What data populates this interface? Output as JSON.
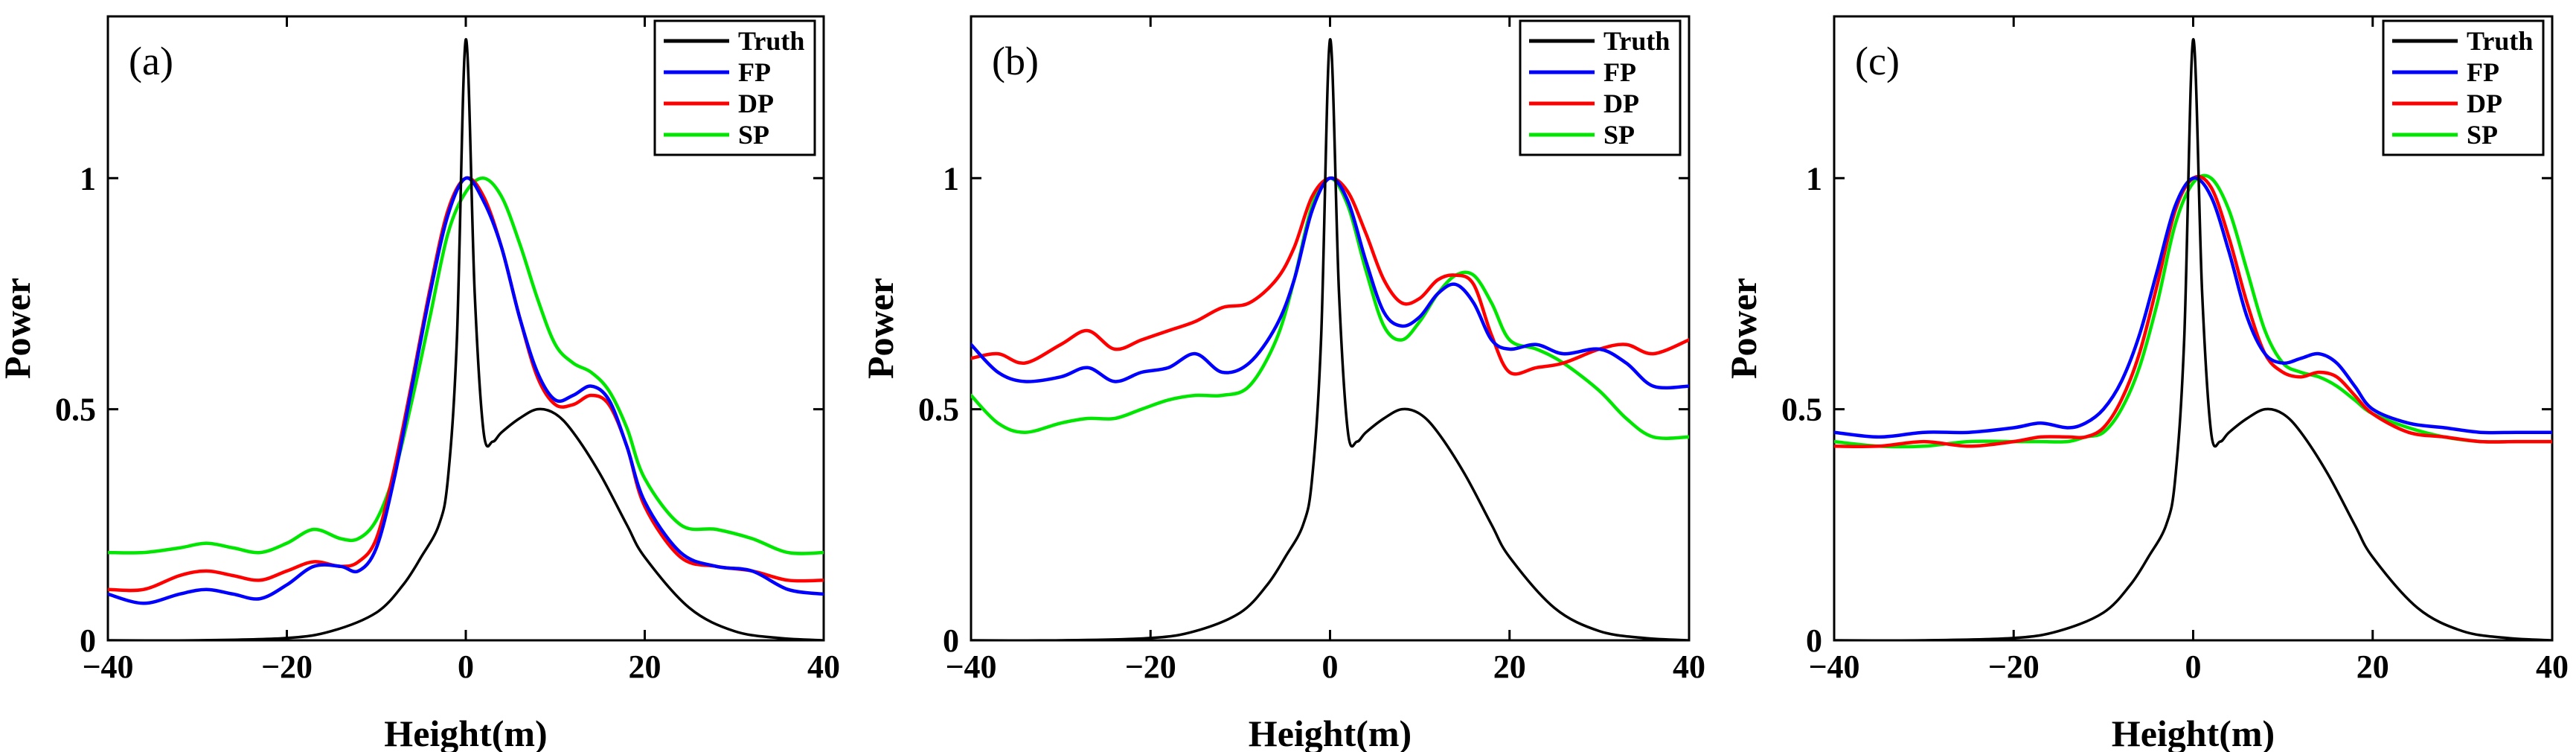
{
  "colors": {
    "Truth": "#000000",
    "FP": "#0000ff",
    "DP": "#ff0000",
    "SP": "#00e600"
  },
  "chart_data": [
    {
      "type": "line",
      "panel_label": "(a)",
      "xlabel": "Height(m)",
      "ylabel": "Power",
      "xlim": [
        -40,
        40
      ],
      "ylim": [
        0,
        1.35
      ],
      "xticks": [
        -40,
        -20,
        0,
        20,
        40
      ],
      "yticks": [
        0,
        0.5,
        1
      ],
      "xtick_labels": [
        "−40",
        "−20",
        "0",
        "20",
        "40"
      ],
      "ytick_labels": [
        "0",
        "0.5",
        "1"
      ],
      "legend": [
        "Truth",
        "FP",
        "DP",
        "SP"
      ],
      "legend_position": "top-right",
      "series": [
        {
          "name": "Truth",
          "x": [
            -40,
            -30,
            -20,
            -15,
            -10,
            -7,
            -5,
            -3,
            -2,
            -1,
            0,
            1,
            2,
            3,
            4,
            6,
            8,
            10,
            12,
            15,
            18,
            20,
            25,
            30,
            35,
            40
          ],
          "y": [
            0,
            0,
            0.005,
            0.02,
            0.06,
            0.12,
            0.18,
            0.25,
            0.35,
            0.65,
            1.3,
            0.75,
            0.45,
            0.43,
            0.45,
            0.48,
            0.5,
            0.49,
            0.45,
            0.36,
            0.25,
            0.18,
            0.07,
            0.02,
            0.005,
            0
          ]
        },
        {
          "name": "FP",
          "x": [
            -40,
            -36,
            -32,
            -29,
            -26,
            -23,
            -20,
            -17,
            -14,
            -12,
            -10,
            -8,
            -6,
            -4,
            -2,
            0,
            2,
            4,
            6,
            8,
            10,
            12,
            14,
            16,
            18,
            20,
            24,
            28,
            32,
            36,
            40
          ],
          "y": [
            0.1,
            0.08,
            0.1,
            0.11,
            0.1,
            0.09,
            0.12,
            0.16,
            0.16,
            0.15,
            0.2,
            0.35,
            0.55,
            0.75,
            0.92,
            1.0,
            0.95,
            0.85,
            0.7,
            0.58,
            0.52,
            0.53,
            0.55,
            0.52,
            0.42,
            0.3,
            0.19,
            0.16,
            0.15,
            0.11,
            0.1
          ]
        },
        {
          "name": "DP",
          "x": [
            -40,
            -36,
            -32,
            -29,
            -26,
            -23,
            -20,
            -17,
            -14,
            -12,
            -10,
            -8,
            -6,
            -4,
            -2,
            0,
            2,
            4,
            6,
            8,
            10,
            12,
            14,
            16,
            18,
            20,
            24,
            28,
            32,
            36,
            40
          ],
          "y": [
            0.11,
            0.11,
            0.14,
            0.15,
            0.14,
            0.13,
            0.15,
            0.17,
            0.16,
            0.17,
            0.22,
            0.37,
            0.56,
            0.76,
            0.93,
            1.0,
            0.96,
            0.85,
            0.7,
            0.57,
            0.51,
            0.51,
            0.53,
            0.51,
            0.42,
            0.29,
            0.18,
            0.16,
            0.15,
            0.13,
            0.13
          ]
        },
        {
          "name": "SP",
          "x": [
            -40,
            -36,
            -32,
            -29,
            -26,
            -23,
            -20,
            -17,
            -14,
            -12,
            -10,
            -8,
            -6,
            -4,
            -2,
            0,
            2,
            4,
            6,
            8,
            10,
            12,
            14,
            16,
            18,
            20,
            24,
            28,
            32,
            36,
            40
          ],
          "y": [
            0.19,
            0.19,
            0.2,
            0.21,
            0.2,
            0.19,
            0.21,
            0.24,
            0.22,
            0.22,
            0.26,
            0.36,
            0.52,
            0.7,
            0.88,
            0.97,
            1.0,
            0.96,
            0.86,
            0.74,
            0.64,
            0.6,
            0.58,
            0.54,
            0.46,
            0.35,
            0.25,
            0.24,
            0.22,
            0.19,
            0.19
          ]
        }
      ]
    },
    {
      "type": "line",
      "panel_label": "(b)",
      "xlabel": "Height(m)",
      "ylabel": "Power",
      "xlim": [
        -40,
        40
      ],
      "ylim": [
        0,
        1.35
      ],
      "xticks": [
        -40,
        -20,
        0,
        20,
        40
      ],
      "yticks": [
        0,
        0.5,
        1
      ],
      "xtick_labels": [
        "−40",
        "−20",
        "0",
        "20",
        "40"
      ],
      "ytick_labels": [
        "0",
        "0.5",
        "1"
      ],
      "legend": [
        "Truth",
        "FP",
        "DP",
        "SP"
      ],
      "legend_position": "top-right",
      "series": [
        {
          "name": "Truth",
          "x": [
            -40,
            -30,
            -20,
            -15,
            -10,
            -7,
            -5,
            -3,
            -2,
            -1,
            0,
            1,
            2,
            3,
            4,
            6,
            8,
            10,
            12,
            15,
            18,
            20,
            25,
            30,
            35,
            40
          ],
          "y": [
            0,
            0,
            0.005,
            0.02,
            0.06,
            0.12,
            0.18,
            0.25,
            0.35,
            0.65,
            1.3,
            0.75,
            0.45,
            0.43,
            0.45,
            0.48,
            0.5,
            0.49,
            0.45,
            0.36,
            0.25,
            0.18,
            0.07,
            0.02,
            0.005,
            0
          ]
        },
        {
          "name": "FP",
          "x": [
            -40,
            -37,
            -34,
            -30,
            -27,
            -24,
            -21,
            -18,
            -15,
            -12,
            -9,
            -6,
            -4,
            -2,
            0,
            2,
            4,
            6,
            8,
            10,
            12,
            14,
            16,
            18,
            20,
            23,
            26,
            30,
            33,
            36,
            40
          ],
          "y": [
            0.64,
            0.58,
            0.56,
            0.57,
            0.59,
            0.56,
            0.58,
            0.59,
            0.62,
            0.58,
            0.6,
            0.68,
            0.78,
            0.93,
            1.0,
            0.95,
            0.82,
            0.71,
            0.68,
            0.7,
            0.75,
            0.77,
            0.73,
            0.65,
            0.63,
            0.64,
            0.62,
            0.63,
            0.6,
            0.55,
            0.55
          ]
        },
        {
          "name": "DP",
          "x": [
            -40,
            -37,
            -34,
            -30,
            -27,
            -24,
            -21,
            -18,
            -15,
            -12,
            -9,
            -6,
            -4,
            -2,
            0,
            2,
            4,
            6,
            8,
            10,
            12,
            14,
            16,
            18,
            20,
            23,
            26,
            30,
            33,
            36,
            40
          ],
          "y": [
            0.61,
            0.62,
            0.6,
            0.64,
            0.67,
            0.63,
            0.65,
            0.67,
            0.69,
            0.72,
            0.73,
            0.78,
            0.85,
            0.96,
            1.0,
            0.97,
            0.88,
            0.78,
            0.73,
            0.74,
            0.78,
            0.79,
            0.77,
            0.66,
            0.58,
            0.59,
            0.6,
            0.63,
            0.64,
            0.62,
            0.65
          ]
        },
        {
          "name": "SP",
          "x": [
            -40,
            -37,
            -34,
            -30,
            -27,
            -24,
            -21,
            -18,
            -15,
            -12,
            -9,
            -6,
            -4,
            -2,
            0,
            2,
            4,
            6,
            8,
            10,
            12,
            14,
            16,
            18,
            20,
            23,
            26,
            30,
            33,
            36,
            40
          ],
          "y": [
            0.53,
            0.47,
            0.45,
            0.47,
            0.48,
            0.48,
            0.5,
            0.52,
            0.53,
            0.53,
            0.55,
            0.65,
            0.78,
            0.94,
            1.0,
            0.94,
            0.8,
            0.68,
            0.65,
            0.69,
            0.75,
            0.79,
            0.79,
            0.73,
            0.65,
            0.63,
            0.6,
            0.54,
            0.48,
            0.44,
            0.44
          ]
        }
      ]
    },
    {
      "type": "line",
      "panel_label": "(c)",
      "xlabel": "Height(m)",
      "ylabel": "Power",
      "xlim": [
        -40,
        40
      ],
      "ylim": [
        0,
        1.35
      ],
      "xticks": [
        -40,
        -20,
        0,
        20,
        40
      ],
      "yticks": [
        0,
        0.5,
        1
      ],
      "xtick_labels": [
        "−40",
        "−20",
        "0",
        "20",
        "40"
      ],
      "ytick_labels": [
        "0",
        "0.5",
        "1"
      ],
      "legend": [
        "Truth",
        "FP",
        "DP",
        "SP"
      ],
      "legend_position": "top-right",
      "series": [
        {
          "name": "Truth",
          "x": [
            -40,
            -30,
            -20,
            -15,
            -10,
            -7,
            -5,
            -3,
            -2,
            -1,
            0,
            1,
            2,
            3,
            4,
            6,
            8,
            10,
            12,
            15,
            18,
            20,
            25,
            30,
            35,
            40
          ],
          "y": [
            0,
            0,
            0.005,
            0.02,
            0.06,
            0.12,
            0.18,
            0.25,
            0.35,
            0.65,
            1.3,
            0.75,
            0.45,
            0.43,
            0.45,
            0.48,
            0.5,
            0.49,
            0.45,
            0.36,
            0.25,
            0.18,
            0.07,
            0.02,
            0.005,
            0
          ]
        },
        {
          "name": "FP",
          "x": [
            -40,
            -35,
            -30,
            -25,
            -20,
            -17,
            -14,
            -12,
            -10,
            -8,
            -6,
            -4,
            -2,
            0,
            2,
            4,
            6,
            8,
            10,
            12,
            14,
            16,
            18,
            20,
            24,
            28,
            32,
            36,
            40
          ],
          "y": [
            0.45,
            0.44,
            0.45,
            0.45,
            0.46,
            0.47,
            0.46,
            0.47,
            0.5,
            0.56,
            0.66,
            0.8,
            0.94,
            1.0,
            0.96,
            0.84,
            0.7,
            0.62,
            0.6,
            0.61,
            0.62,
            0.6,
            0.55,
            0.5,
            0.47,
            0.46,
            0.45,
            0.45,
            0.45
          ]
        },
        {
          "name": "DP",
          "x": [
            -40,
            -35,
            -30,
            -25,
            -20,
            -17,
            -14,
            -12,
            -10,
            -8,
            -6,
            -4,
            -2,
            0,
            2,
            4,
            6,
            8,
            10,
            12,
            14,
            16,
            18,
            20,
            24,
            28,
            32,
            36,
            40
          ],
          "y": [
            0.42,
            0.42,
            0.43,
            0.42,
            0.43,
            0.44,
            0.44,
            0.44,
            0.46,
            0.52,
            0.62,
            0.77,
            0.93,
            1.0,
            0.98,
            0.87,
            0.73,
            0.62,
            0.58,
            0.57,
            0.58,
            0.57,
            0.53,
            0.49,
            0.45,
            0.44,
            0.43,
            0.43,
            0.43
          ]
        },
        {
          "name": "SP",
          "x": [
            -40,
            -35,
            -30,
            -25,
            -20,
            -17,
            -14,
            -12,
            -10,
            -8,
            -6,
            -4,
            -2,
            0,
            2,
            4,
            6,
            8,
            10,
            12,
            14,
            16,
            18,
            20,
            24,
            28,
            32,
            36,
            40
          ],
          "y": [
            0.43,
            0.42,
            0.42,
            0.43,
            0.43,
            0.43,
            0.43,
            0.44,
            0.45,
            0.5,
            0.59,
            0.73,
            0.9,
            0.99,
            1.0,
            0.93,
            0.8,
            0.67,
            0.6,
            0.58,
            0.57,
            0.55,
            0.52,
            0.49,
            0.46,
            0.44,
            0.43,
            0.43,
            0.43
          ]
        }
      ]
    }
  ]
}
